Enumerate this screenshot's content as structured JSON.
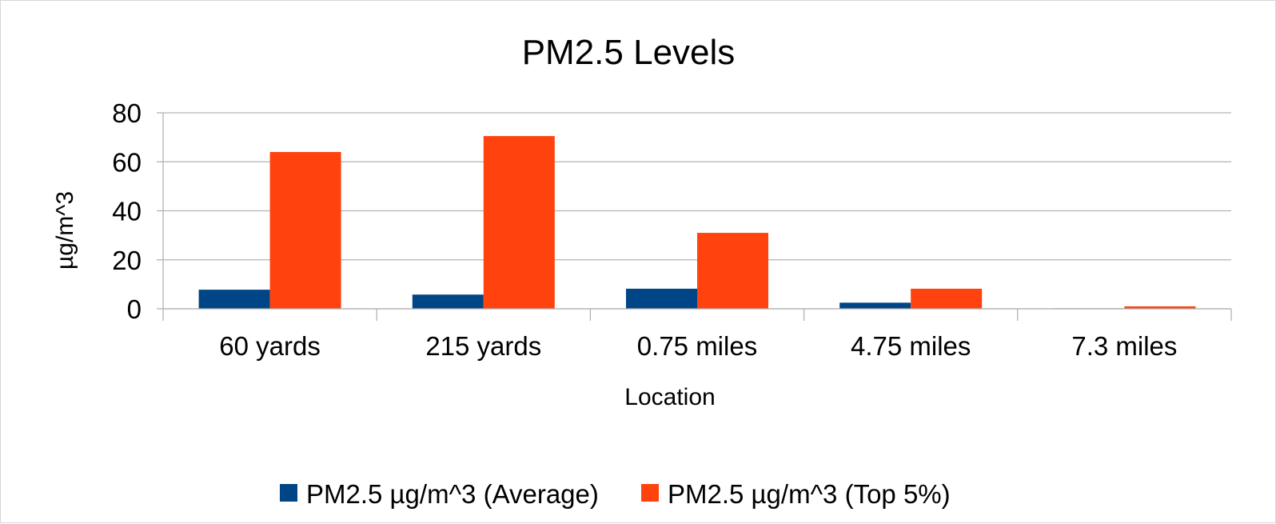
{
  "chart_data": {
    "type": "bar",
    "title": "PM2.5 Levels",
    "xlabel": "Location",
    "ylabel": "µg/m^3",
    "categories": [
      "60 yards",
      "215 yards",
      "0.75 miles",
      "4.75 miles",
      "7.3 miles"
    ],
    "series": [
      {
        "name": "PM2.5 µg/m^3 (Average)",
        "color": "#004586",
        "values": [
          7.8,
          5.8,
          8.2,
          2.5,
          0.2
        ]
      },
      {
        "name": "PM2.5 µg/m^3 (Top 5%)",
        "color": "#ff420e",
        "values": [
          64,
          70.5,
          31,
          8.2,
          1
        ]
      }
    ],
    "ylim": [
      0,
      80
    ],
    "yticks": [
      0,
      20,
      40,
      60,
      80
    ],
    "grid": true,
    "legend_position": "bottom"
  }
}
